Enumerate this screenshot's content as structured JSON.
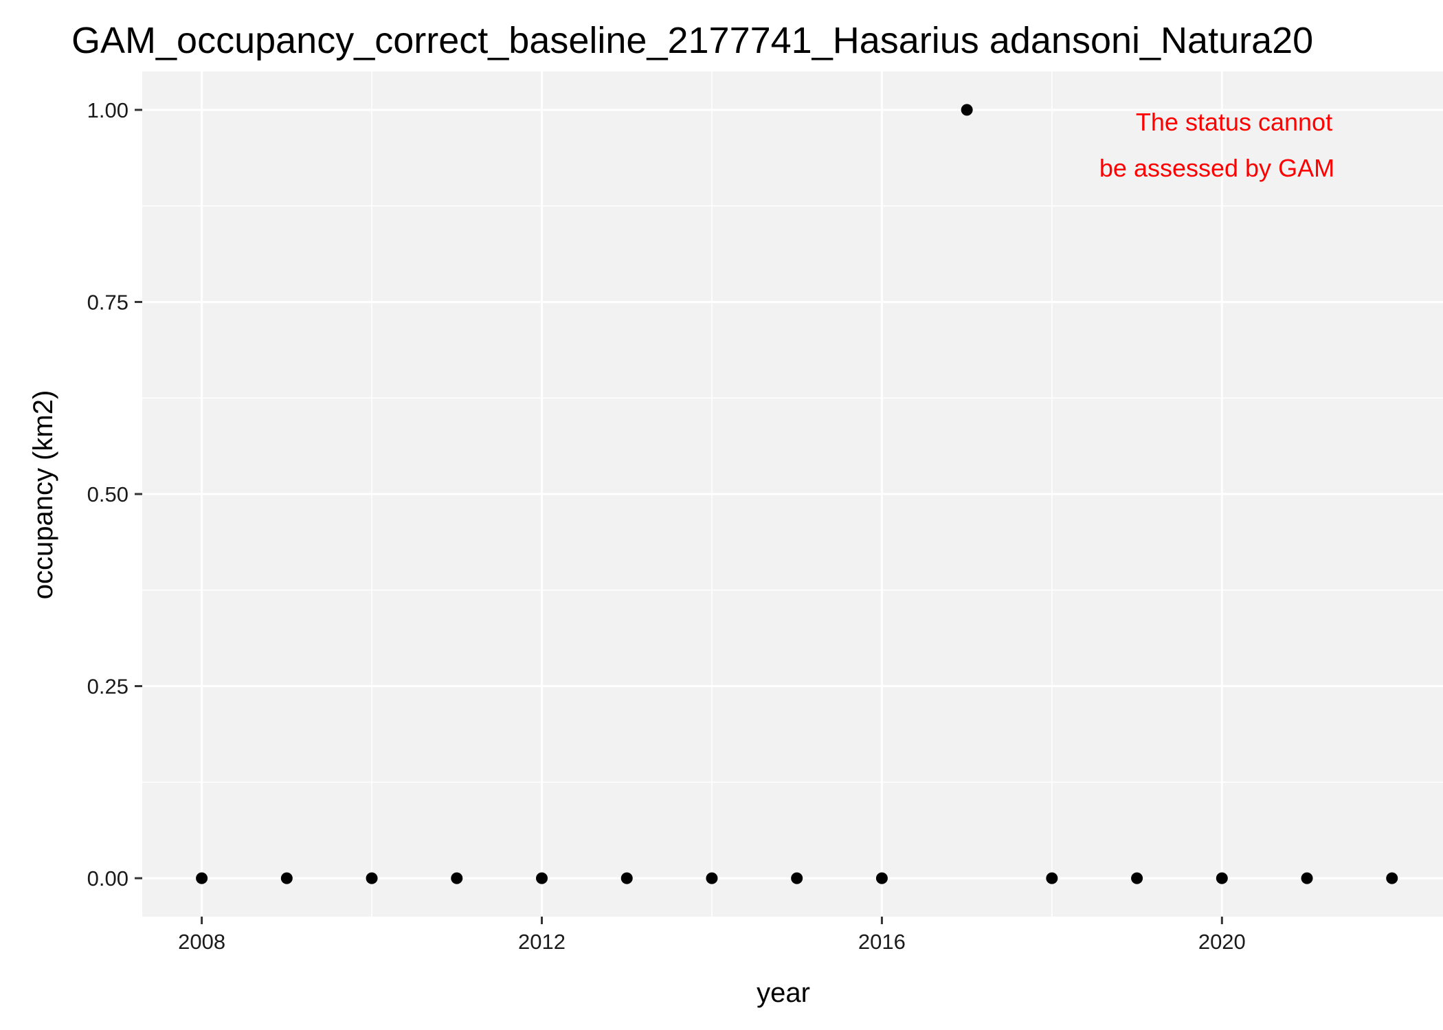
{
  "chart_data": {
    "type": "scatter",
    "title": "GAM_occupancy_correct_baseline_2177741_Hasarius adansoni_Natura20",
    "xlabel": "year",
    "ylabel": "occupancy (km2)",
    "xlim": [
      2007.3,
      2022.6
    ],
    "ylim": [
      -0.05,
      1.05
    ],
    "x_ticks": [
      2008,
      2012,
      2016,
      2020
    ],
    "y_ticks": [
      0.0,
      0.25,
      0.5,
      0.75,
      1.0
    ],
    "y_tick_labels": [
      "0.00",
      "0.25",
      "0.50",
      "0.75",
      "1.00"
    ],
    "grid": true,
    "background": "#f2f2f2",
    "point_color": "#000000",
    "points": [
      {
        "x": 2008,
        "y": 0
      },
      {
        "x": 2009,
        "y": 0
      },
      {
        "x": 2010,
        "y": 0
      },
      {
        "x": 2011,
        "y": 0
      },
      {
        "x": 2012,
        "y": 0
      },
      {
        "x": 2013,
        "y": 0
      },
      {
        "x": 2014,
        "y": 0
      },
      {
        "x": 2015,
        "y": 0
      },
      {
        "x": 2016,
        "y": 0
      },
      {
        "x": 2017,
        "y": 1
      },
      {
        "x": 2018,
        "y": 0
      },
      {
        "x": 2019,
        "y": 0
      },
      {
        "x": 2020,
        "y": 0
      },
      {
        "x": 2021,
        "y": 0
      },
      {
        "x": 2022,
        "y": 0
      }
    ],
    "annotation": {
      "lines": [
        "The status cannot",
        "be assessed by GAM"
      ],
      "color": "#ff0000",
      "position": "top-right"
    }
  }
}
